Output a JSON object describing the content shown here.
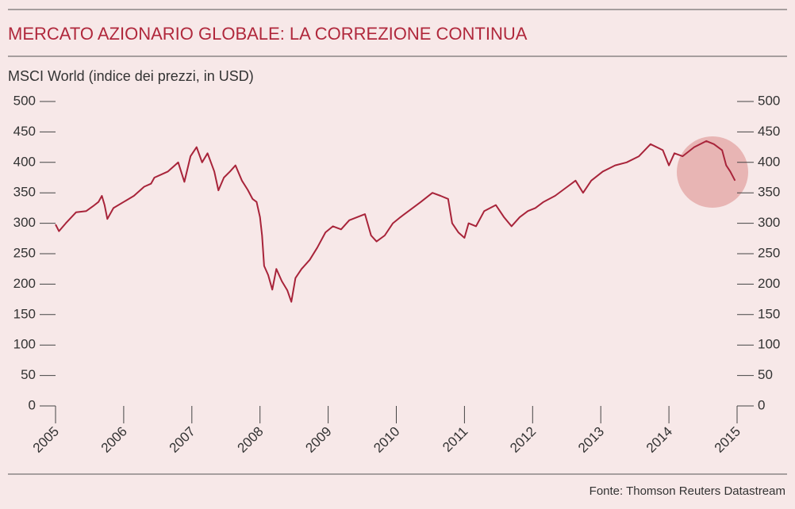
{
  "chart_data": {
    "type": "line",
    "title": "MERCATO AZIONARIO GLOBALE: LA CORREZIONE CONTINUA",
    "subtitle": "MSCI World (indice dei prezzi, in USD)",
    "source": "Fonte: Thomson Reuters Datastream",
    "x": [
      2005.0,
      2005.05,
      2005.15,
      2005.3,
      2005.45,
      2005.55,
      2005.63,
      2005.68,
      2005.72,
      2005.76,
      2005.85,
      2006.0,
      2006.15,
      2006.3,
      2006.4,
      2006.45,
      2006.55,
      2006.65,
      2006.75,
      2006.8,
      2006.89,
      2006.98,
      2007.07,
      2007.15,
      2007.23,
      2007.33,
      2007.39,
      2007.47,
      2007.56,
      2007.64,
      2007.735,
      2007.82,
      2007.89,
      2007.95,
      2008.0,
      2008.03,
      2008.06,
      2008.12,
      2008.18,
      2008.24,
      2008.32,
      2008.4,
      2008.46,
      2008.52,
      2008.61,
      2008.73,
      2008.84,
      2008.96,
      2009.07,
      2009.19,
      2009.31,
      2009.54,
      2009.63,
      2009.71,
      2009.83,
      2009.95,
      2010.06,
      2010.18,
      2010.36,
      2010.53,
      2010.65,
      2010.76,
      2010.82,
      2010.91,
      2011.0,
      2011.06,
      2011.17,
      2011.29,
      2011.46,
      2011.58,
      2011.69,
      2011.81,
      2011.93,
      2012.04,
      2012.16,
      2012.33,
      2012.51,
      2012.63,
      2012.74,
      2012.86,
      2013.03,
      2013.21,
      2013.38,
      2013.56,
      2013.73,
      2013.91,
      2014.0,
      2014.08,
      2014.2,
      2014.37,
      2014.55,
      2014.66,
      2014.78,
      2014.84,
      2014.9,
      2014.97
    ],
    "series": [
      {
        "name": "MSCI World",
        "color": "#a8243a",
        "values": [
          298,
          287,
          300,
          318,
          320,
          328,
          335,
          345,
          330,
          307,
          325,
          335,
          345,
          360,
          365,
          375,
          380,
          385,
          395,
          400,
          368,
          410,
          425,
          400,
          415,
          385,
          354,
          375,
          385,
          395,
          370,
          355,
          340,
          335,
          310,
          280,
          230,
          215,
          191,
          225,
          205,
          190,
          171,
          210,
          225,
          240,
          260,
          285,
          295,
          290,
          305,
          315,
          280,
          270,
          280,
          300,
          310,
          320,
          335,
          350,
          345,
          340,
          300,
          285,
          276,
          300,
          295,
          320,
          330,
          310,
          295,
          310,
          320,
          325,
          335,
          345,
          360,
          370,
          350,
          370,
          385,
          395,
          400,
          410,
          430,
          420,
          395,
          415,
          410,
          425,
          435,
          430,
          420,
          395,
          385,
          370
        ]
      }
    ],
    "xlim": [
      2005,
      2015
    ],
    "xticks": [
      2005,
      2006,
      2007,
      2008,
      2009,
      2010,
      2011,
      2012,
      2013,
      2014,
      2015
    ],
    "ylim": [
      0,
      500
    ],
    "yticks": [
      0,
      50,
      100,
      150,
      200,
      250,
      300,
      350,
      400,
      450,
      500
    ],
    "y2lim": [
      0,
      500
    ],
    "y2ticks": [
      0,
      50,
      100,
      150,
      200,
      250,
      300,
      350,
      400,
      450,
      500
    ]
  }
}
